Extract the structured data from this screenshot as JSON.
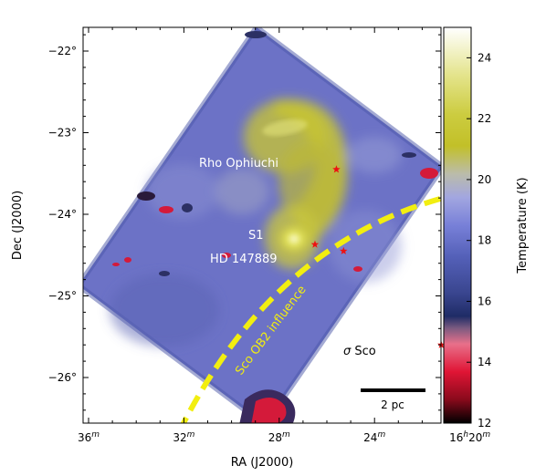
{
  "chart_data": {
    "type": "heatmap",
    "title": "",
    "xlabel": "RA (J2000)",
    "ylabel": "Dec (J2000)",
    "colorbar_label": "Temperature (K)",
    "x_ticks": [
      {
        "label": "36",
        "sup": "m",
        "value": 36
      },
      {
        "label": "32",
        "sup": "m",
        "value": 32
      },
      {
        "label": "28",
        "sup": "m",
        "value": 28
      },
      {
        "label": "24",
        "sup": "m",
        "value": 24
      },
      {
        "label": "16",
        "sup": "h",
        "label2": "20",
        "sup2": "m",
        "value": 20
      }
    ],
    "y_ticks": [
      "−22°",
      "−23°",
      "−24°",
      "−25°",
      "−26°"
    ],
    "y_tick_values": [
      -22,
      -23,
      -24,
      -25,
      -26
    ],
    "colorbar": {
      "min": 12,
      "max": 25,
      "ticks": [
        12,
        14,
        16,
        18,
        20,
        22,
        24
      ],
      "tick_labels": [
        "12",
        "14",
        "16",
        "18",
        "20",
        "22",
        "24"
      ]
    },
    "stars": [
      {
        "name": "Rho Ophiuchi",
        "ra_min": 25.6,
        "dec": -23.45
      },
      {
        "name": "S1",
        "ra_min": 26.5,
        "dec": -24.37
      },
      {
        "name": "HD 147889",
        "ra_min": 25.3,
        "dec": -24.45
      },
      {
        "name": "σ Sco",
        "ra_min": 21.2,
        "dec": -25.6
      }
    ],
    "sigma_symbol": "σ",
    "sigma_rest": " Sco",
    "influence_label": "Sco OB2 influence",
    "scalebar_label": "2 pc",
    "colors": {
      "star": "#ee1111",
      "arc": "#f2ee10",
      "cmap": [
        "#000000",
        "#d41030",
        "#e65c7a",
        "#232b5e",
        "#4a55a8",
        "#8b93e0",
        "#bbbbb0",
        "#c4c22a",
        "#e8e88a",
        "#ffffff"
      ]
    }
  }
}
